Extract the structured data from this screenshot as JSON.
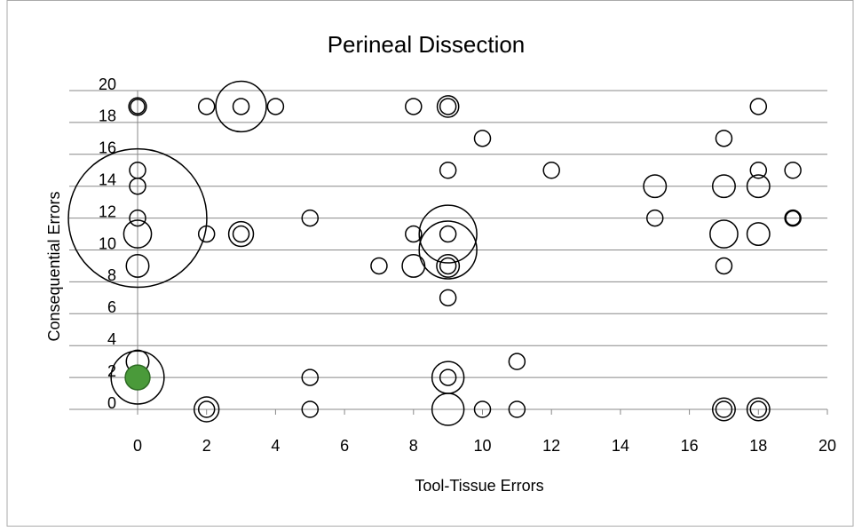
{
  "chart_data": {
    "type": "bubble",
    "title": "Perineal Dissection",
    "x_label": "Tool-Tissue Errors",
    "y_label": "Consequential Errors",
    "xlim": [
      0,
      20
    ],
    "ylim": [
      0,
      20
    ],
    "xticks": [
      0,
      2,
      4,
      6,
      8,
      10,
      12,
      14,
      16,
      18,
      20
    ],
    "yticks": [
      0,
      2,
      4,
      6,
      8,
      10,
      12,
      14,
      16,
      18,
      20
    ],
    "grid": true,
    "series": [
      {
        "fill": "none",
        "edge": "#000000",
        "x": [
          0,
          0,
          2,
          3,
          3,
          4,
          8,
          9,
          9,
          18,
          10,
          17,
          0,
          9,
          12,
          15,
          17,
          18,
          18,
          19,
          0,
          0,
          0,
          0,
          2,
          3,
          3,
          5,
          8,
          9,
          9,
          9,
          15,
          17,
          18,
          19,
          19,
          0,
          7,
          8,
          9,
          9,
          17,
          9,
          0,
          0,
          5,
          9,
          9,
          11,
          2,
          2,
          5,
          9,
          10,
          11,
          17,
          17,
          18,
          18
        ],
        "y": [
          19,
          19,
          19,
          19,
          19,
          19,
          19,
          19,
          19,
          19,
          17,
          17,
          15,
          15,
          15,
          14,
          14,
          15,
          14,
          15,
          14,
          12,
          12,
          11,
          11,
          11,
          11,
          12,
          11,
          11,
          11,
          10,
          12,
          11,
          11,
          12,
          12,
          9,
          9,
          9,
          9,
          9,
          9,
          7,
          3,
          2,
          2,
          2,
          2,
          3,
          0,
          0,
          0,
          0,
          0,
          0,
          0,
          0,
          0,
          0
        ],
        "size": [
          1.2,
          0.8,
          1,
          10,
          1,
          1,
          1,
          1.8,
          1,
          1,
          1,
          1,
          1,
          1,
          1,
          2,
          2,
          1,
          2,
          1,
          1,
          75,
          1,
          3,
          1,
          2.4,
          1,
          1,
          1,
          13,
          1,
          13,
          1,
          3,
          2,
          1,
          0.8,
          2,
          1,
          2,
          2,
          1,
          1,
          1,
          2,
          11,
          1,
          4,
          1,
          1,
          2.4,
          1,
          1,
          4,
          1,
          1,
          2,
          1,
          2,
          1
        ]
      },
      {
        "fill": "#4a9a3a",
        "edge": "#2e6b24",
        "x": [
          0
        ],
        "y": [
          2
        ],
        "size": [
          2.4
        ]
      }
    ]
  }
}
